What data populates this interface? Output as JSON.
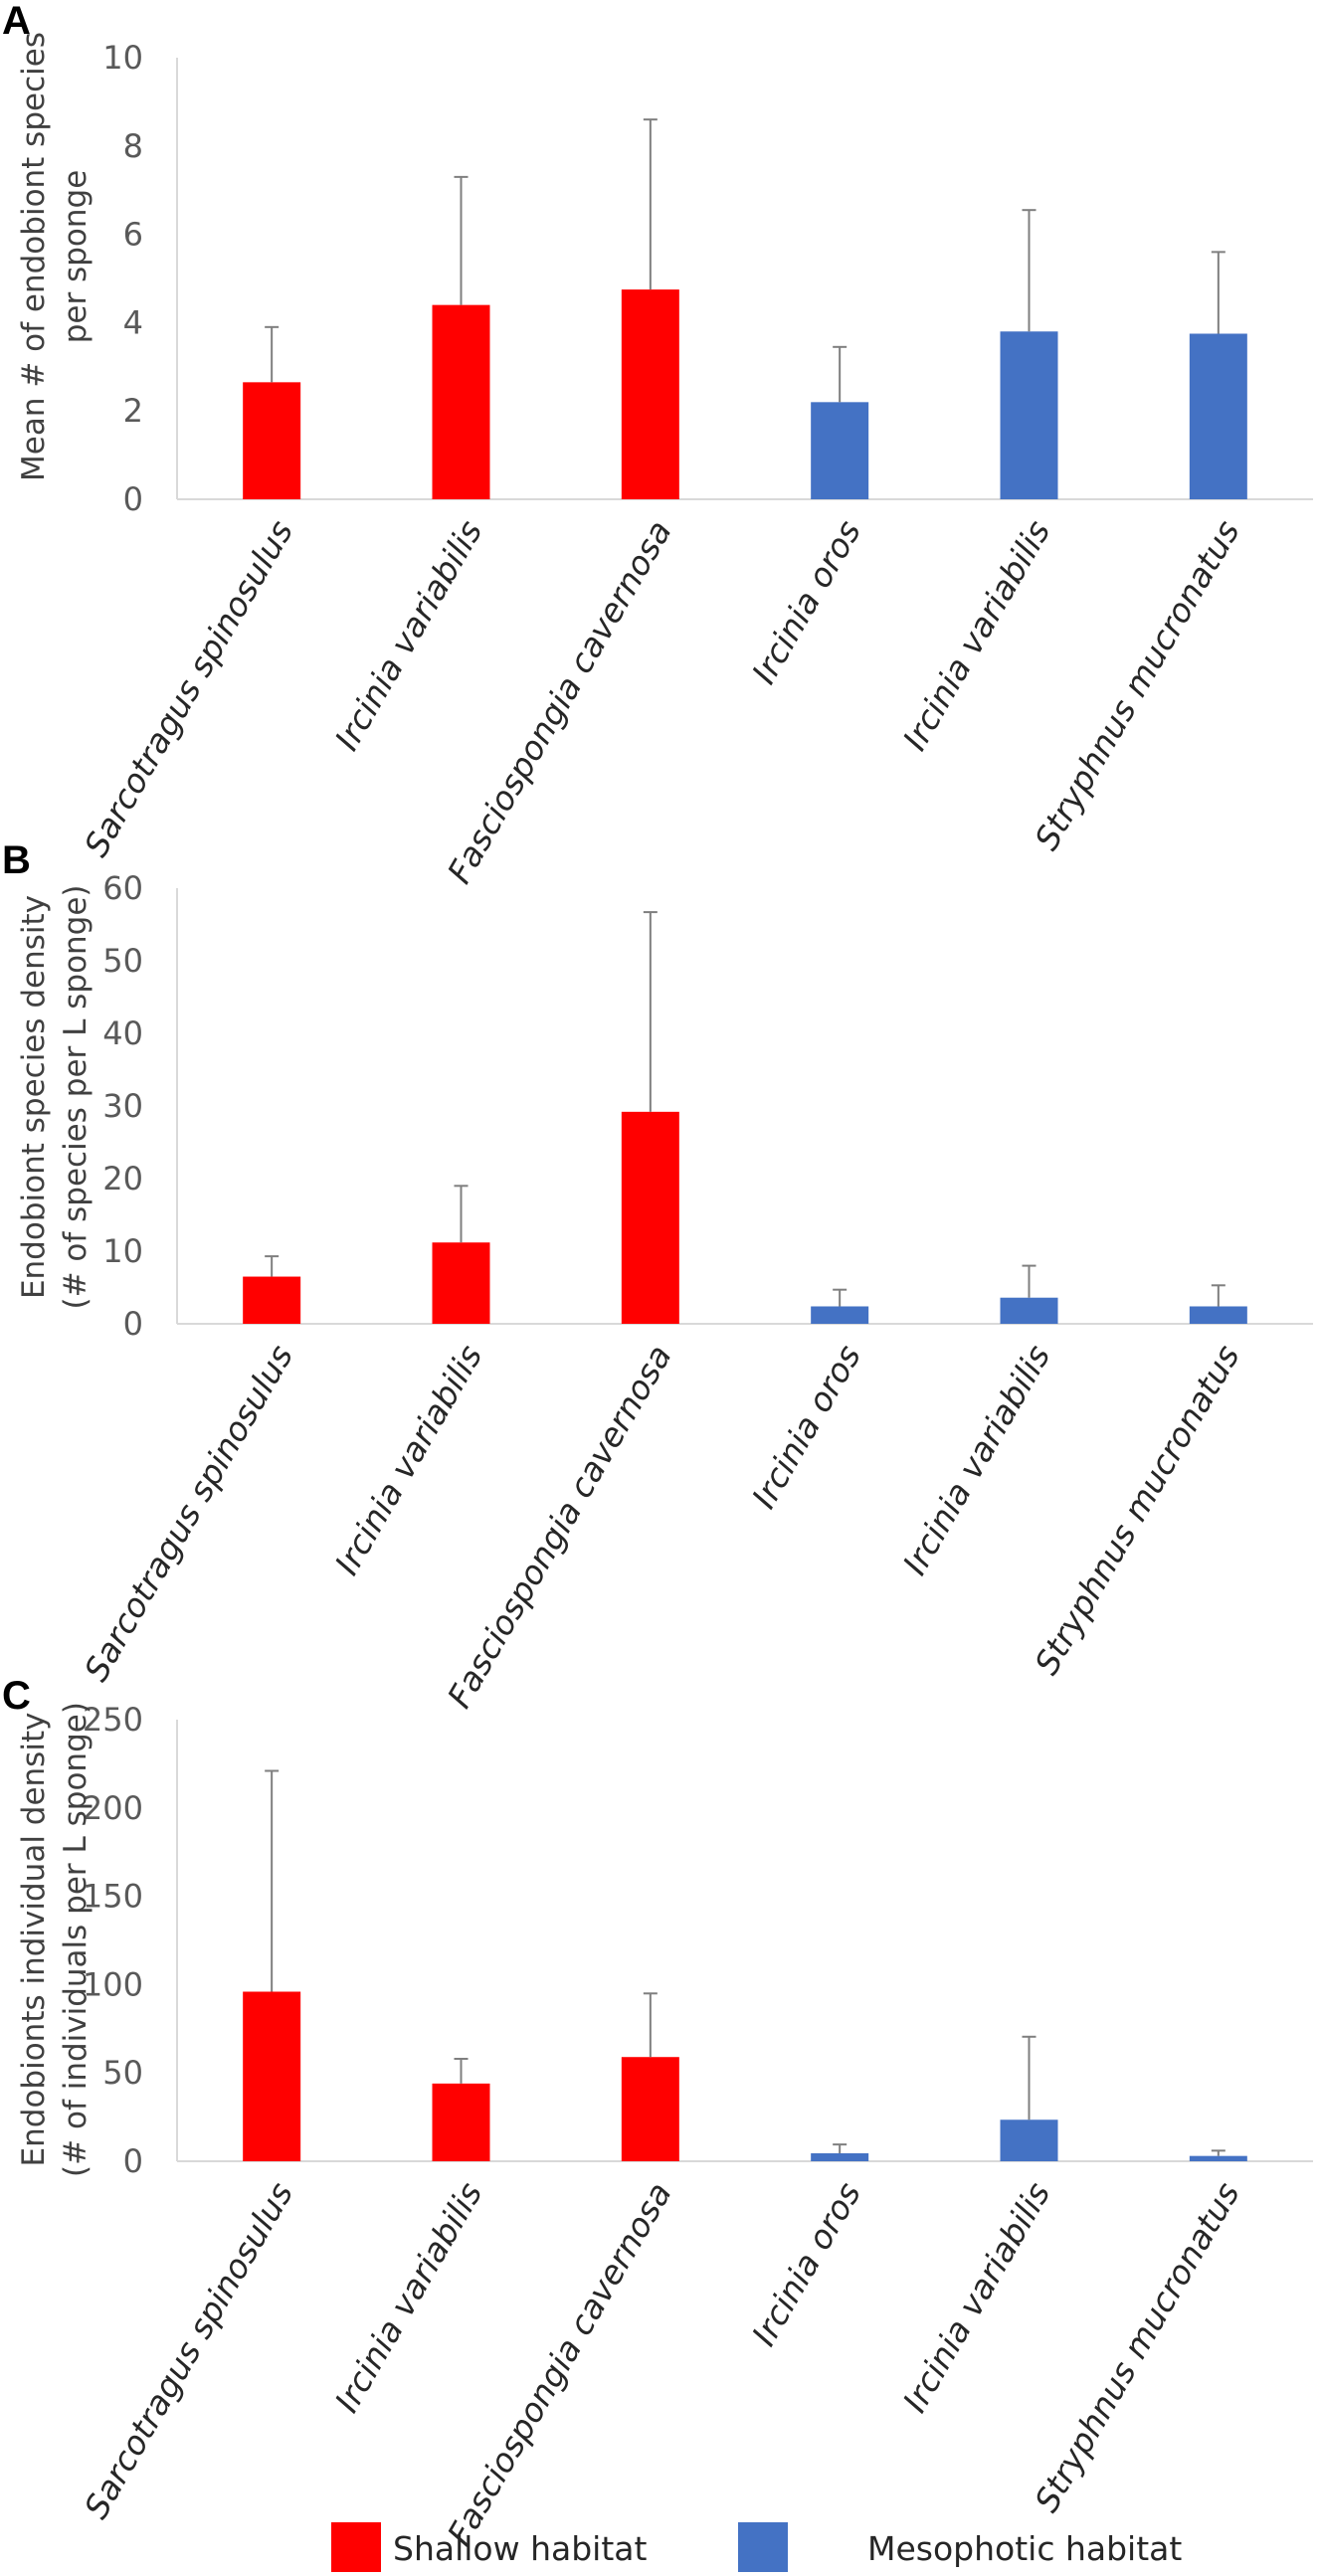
{
  "legend": {
    "shallow_label": "Shallow habitat",
    "mesophotic_label": "Mesophotic habitat",
    "shallow_color": "#ff0000",
    "mesophotic_color": "#4472c4"
  },
  "chart_data": [
    {
      "type": "bar",
      "panel": "A",
      "title": "",
      "ylabel_lines": [
        "Mean # of endobiont species",
        "per sponge"
      ],
      "xlabel": "",
      "ylim": [
        0,
        10
      ],
      "yticks": [
        0,
        2,
        4,
        6,
        8,
        10
      ],
      "categories": [
        "Sarcotragus spinosulus",
        "Ircinia variabilis",
        "Fasciospongia cavernosa",
        "Ircinia oros",
        "Ircinia variabilis",
        "Stryphnus mucronatus"
      ],
      "habitat": [
        "shallow",
        "shallow",
        "shallow",
        "mesophotic",
        "mesophotic",
        "mesophotic"
      ],
      "values": [
        2.65,
        4.4,
        4.75,
        2.2,
        3.8,
        3.75
      ],
      "errors": [
        1.25,
        2.9,
        3.85,
        1.25,
        2.75,
        1.85
      ]
    },
    {
      "type": "bar",
      "panel": "B",
      "title": "",
      "ylabel_lines": [
        "Endobiont species density",
        "(# of species per L sponge)"
      ],
      "xlabel": "",
      "ylim": [
        0,
        60
      ],
      "yticks": [
        0,
        10,
        20,
        30,
        40,
        50,
        60
      ],
      "categories": [
        "Sarcotragus spinosulus",
        "Ircinia variabilis",
        "Fasciospongia cavernosa",
        "Ircinia oros",
        "Ircinia variabilis",
        "Stryphnus mucronatus"
      ],
      "habitat": [
        "shallow",
        "shallow",
        "shallow",
        "mesophotic",
        "mesophotic",
        "mesophotic"
      ],
      "values": [
        6.5,
        11.2,
        29.2,
        2.4,
        3.6,
        2.4
      ],
      "errors": [
        2.8,
        7.8,
        27.5,
        2.3,
        4.4,
        2.9
      ]
    },
    {
      "type": "bar",
      "panel": "C",
      "title": "",
      "ylabel_lines": [
        "Endobionts individual density",
        "(# of individuals per L sponge)"
      ],
      "xlabel": "",
      "ylim": [
        0,
        250
      ],
      "yticks": [
        0,
        50,
        100,
        150,
        200,
        250
      ],
      "categories": [
        "Sarcotragus spinosulus",
        "Ircinia variabilis",
        "Fasciospongia cavernosa",
        "Ircinia oros",
        "Ircinia variabilis",
        "Stryphnus mucronatus"
      ],
      "habitat": [
        "shallow",
        "shallow",
        "shallow",
        "mesophotic",
        "mesophotic",
        "mesophotic"
      ],
      "values": [
        96,
        44,
        59,
        4.5,
        23.5,
        3
      ],
      "errors": [
        125,
        14,
        36,
        5,
        47,
        3
      ]
    }
  ]
}
